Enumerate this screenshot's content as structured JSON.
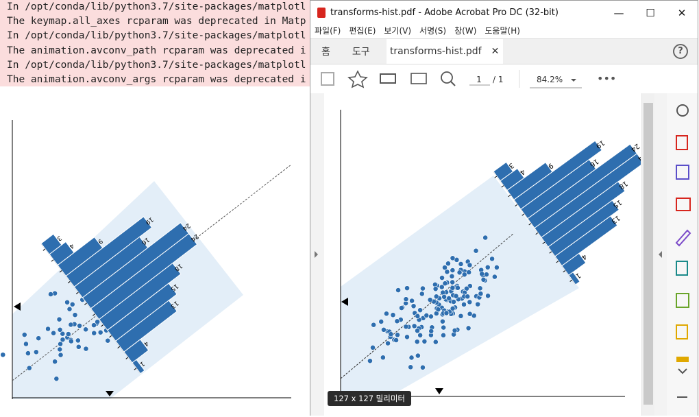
{
  "console": {
    "lines": [
      "In /opt/conda/lib/python3.7/site-packages/matplotl",
      "The keymap.all_axes rcparam was deprecated in Matp",
      "In /opt/conda/lib/python3.7/site-packages/matplotl",
      "The animation.avconv_path rcparam was deprecated i",
      "In /opt/conda/lib/python3.7/site-packages/matplotl",
      "The animation.avconv_args rcparam was deprecated i"
    ]
  },
  "window": {
    "title": "transforms-hist.pdf - Adobe Acrobat Pro DC (32-bit)",
    "menu": [
      "파일(F)",
      "편집(E)",
      "보기(V)",
      "서명(S)",
      "창(W)",
      "도움말(H)"
    ],
    "tabs": {
      "home": "홈",
      "tools": "도구",
      "document": "transforms-hist.pdf"
    },
    "toolbar": {
      "page": "1",
      "page_total": "/ 1",
      "zoom": "84.2%"
    },
    "tooltip": "127 x 127 밀리미터"
  },
  "plots": [
    {
      "counts": [
        3,
        4,
        9,
        19,
        16,
        24,
        24,
        18,
        15,
        13,
        4,
        1
      ]
    },
    {
      "counts": [
        3,
        4,
        9,
        19,
        16,
        24,
        24,
        18,
        15,
        13,
        4,
        1
      ]
    }
  ]
}
